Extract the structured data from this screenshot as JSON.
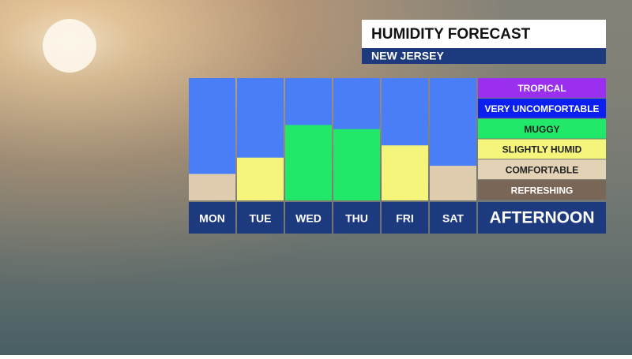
{
  "chart_data": {
    "type": "bar",
    "title": "HUMIDITY FORECAST",
    "subtitle": "NEW JERSEY",
    "x_label": "AFTERNOON",
    "categories": [
      "MON",
      "TUE",
      "WED",
      "THU",
      "FRI",
      "SAT"
    ],
    "values": [
      1.3,
      2.1,
      3.7,
      3.5,
      2.7,
      1.7
    ],
    "colors": [
      "#e0cdb0",
      "#f4f57a",
      "#22e86a",
      "#22e86a",
      "#f4f57a",
      "#e0cdb0"
    ],
    "background_color": "#4a7ef6",
    "ylim": [
      0,
      6
    ],
    "yticks": [
      {
        "value": 0.5,
        "label": "REFRESHING"
      },
      {
        "value": 1.5,
        "label": "COMFORTABLE"
      },
      {
        "value": 2.5,
        "label": "SLIGHTLY HUMID"
      },
      {
        "value": 3.5,
        "label": "MUGGY"
      },
      {
        "value": 4.5,
        "label": "VERY UNCOMFORTABLE"
      },
      {
        "value": 5.5,
        "label": "TROPICAL"
      }
    ],
    "ytick_colors": [
      "#7a6656",
      "#e3d2b5",
      "#f4f57a",
      "#22e86a",
      "#0a1ff0",
      "#9a2ff0"
    ]
  }
}
